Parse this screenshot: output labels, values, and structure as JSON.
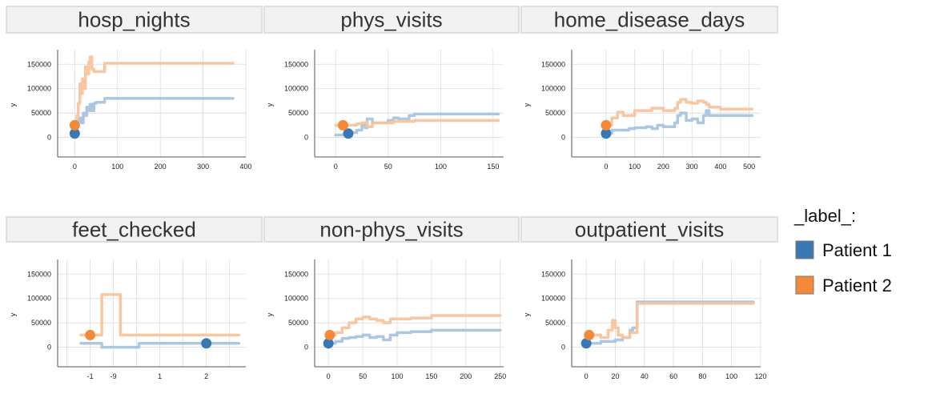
{
  "legend": {
    "title": "_label_:",
    "items": [
      {
        "label": "Patient 1",
        "color": "#3a78b4"
      },
      {
        "label": "Patient 2",
        "color": "#f28a3a"
      }
    ]
  },
  "chart_data": [
    {
      "type": "line",
      "title": "hosp_nights",
      "ylabel": "y",
      "xlim": [
        -40,
        400
      ],
      "ylim": [
        -40000,
        180000
      ],
      "xticks": [
        0,
        100,
        200,
        300,
        400
      ],
      "xtick_labels": [
        "0",
        "100",
        "200",
        "300",
        "400"
      ],
      "yticks": [
        0,
        50000,
        100000,
        150000
      ],
      "ytick_labels": [
        "0",
        "50000",
        "100000",
        "150000"
      ],
      "grid": true,
      "series": [
        {
          "name": "Patient 1",
          "step": true,
          "x": [
            0,
            5,
            8,
            12,
            15,
            20,
            25,
            28,
            32,
            36,
            40,
            45,
            50,
            70,
            370
          ],
          "y": [
            8000,
            25000,
            35000,
            40000,
            30000,
            50000,
            45000,
            62000,
            55000,
            68000,
            55000,
            70000,
            72000,
            80000,
            80000
          ],
          "marker": {
            "x": 0,
            "y": 8000
          }
        },
        {
          "name": "Patient 2",
          "step": true,
          "x": [
            0,
            5,
            8,
            12,
            15,
            18,
            22,
            25,
            30,
            33,
            36,
            40,
            45,
            50,
            70,
            370
          ],
          "y": [
            25000,
            45000,
            70000,
            110000,
            90000,
            120000,
            100000,
            145000,
            130000,
            155000,
            165000,
            140000,
            135000,
            135000,
            152000,
            152000
          ],
          "marker": {
            "x": 0,
            "y": 25000
          }
        }
      ]
    },
    {
      "type": "line",
      "title": "phys_visits",
      "ylabel": "y",
      "xlim": [
        -20,
        160
      ],
      "ylim": [
        -40000,
        180000
      ],
      "xticks": [
        0,
        50,
        100,
        150
      ],
      "xtick_labels": [
        "0",
        "50",
        "100",
        "150"
      ],
      "yticks": [
        0,
        50000,
        100000,
        150000
      ],
      "ytick_labels": [
        "0",
        "50000",
        "100000",
        "150000"
      ],
      "grid": true,
      "series": [
        {
          "name": "Patient 1",
          "step": true,
          "x": [
            0,
            10,
            20,
            25,
            28,
            30,
            35,
            50,
            55,
            60,
            70,
            75,
            155
          ],
          "y": [
            5000,
            10000,
            15000,
            25000,
            20000,
            38000,
            30000,
            35000,
            40000,
            38000,
            45000,
            48000,
            48000
          ],
          "marker": {
            "x": 12,
            "y": 8000
          }
        },
        {
          "name": "Patient 2",
          "step": true,
          "x": [
            0,
            10,
            20,
            25,
            30,
            35,
            50,
            55,
            70,
            75,
            155
          ],
          "y": [
            25000,
            25000,
            28000,
            30000,
            22000,
            30000,
            30000,
            33000,
            33000,
            35000,
            35000
          ],
          "marker": {
            "x": 7,
            "y": 25000
          }
        }
      ]
    },
    {
      "type": "line",
      "title": "home_disease_days",
      "ylabel": "y",
      "xlim": [
        -120,
        540
      ],
      "ylim": [
        -40000,
        180000
      ],
      "xticks": [
        0,
        100,
        200,
        300,
        400,
        500
      ],
      "xtick_labels": [
        "0",
        "100",
        "200",
        "300",
        "400",
        "500"
      ],
      "yticks": [
        0,
        50000,
        100000,
        150000
      ],
      "ytick_labels": [
        "0",
        "50000",
        "100000",
        "150000"
      ],
      "grid": true,
      "series": [
        {
          "name": "Patient 1",
          "step": true,
          "x": [
            0,
            20,
            60,
            80,
            100,
            140,
            160,
            180,
            200,
            240,
            250,
            260,
            280,
            300,
            320,
            340,
            350,
            360,
            510
          ],
          "y": [
            8000,
            15000,
            15000,
            18000,
            20000,
            22000,
            18000,
            25000,
            22000,
            30000,
            45000,
            50000,
            35000,
            38000,
            30000,
            45000,
            55000,
            45000,
            45000
          ],
          "marker": {
            "x": 0,
            "y": 8000
          }
        },
        {
          "name": "Patient 2",
          "step": true,
          "x": [
            0,
            20,
            40,
            60,
            100,
            140,
            160,
            200,
            240,
            250,
            260,
            280,
            300,
            320,
            340,
            350,
            360,
            400,
            510
          ],
          "y": [
            25000,
            40000,
            52000,
            45000,
            55000,
            55000,
            60000,
            55000,
            60000,
            72000,
            78000,
            72000,
            70000,
            75000,
            72000,
            68000,
            62000,
            58000,
            58000
          ],
          "marker": {
            "x": 0,
            "y": 25000
          }
        }
      ]
    },
    {
      "type": "line",
      "title": "feet_checked",
      "ylabel": "y",
      "xlim": [
        -1.7,
        2.35
      ],
      "ylim": [
        -40000,
        180000
      ],
      "xticks": [
        -1.5,
        -1,
        -0.5,
        0,
        0.5,
        1,
        1.5,
        2
      ],
      "xtick_labels": [
        "-1",
        "-9",
        "1",
        "2"
      ],
      "xtick_positions": [
        -1,
        -0.5,
        0.5,
        1.5
      ],
      "yticks": [
        0,
        50000,
        100000,
        150000
      ],
      "ytick_labels": [
        "0",
        "50000",
        "100000",
        "150000"
      ],
      "grid": true,
      "series": [
        {
          "name": "Patient 1",
          "step": true,
          "x": [
            -1.2,
            -0.75,
            0.05,
            2.2
          ],
          "y": [
            8000,
            0,
            8000,
            8000
          ],
          "marker": {
            "x": 1.5,
            "y": 8000
          }
        },
        {
          "name": "Patient 2",
          "step": true,
          "x": [
            -1.2,
            -0.75,
            -0.35,
            0.05,
            2.2
          ],
          "y": [
            25000,
            108000,
            25000,
            25000,
            25000
          ],
          "marker": {
            "x": -1,
            "y": 25000
          }
        }
      ]
    },
    {
      "type": "line",
      "title": "non-phys_visits",
      "ylabel": "y",
      "xlim": [
        -20,
        255
      ],
      "ylim": [
        -40000,
        180000
      ],
      "xticks": [
        0,
        50,
        100,
        150,
        200,
        250
      ],
      "xtick_labels": [
        "0",
        "50",
        "100",
        "150",
        "200",
        "250"
      ],
      "yticks": [
        0,
        50000,
        100000,
        150000
      ],
      "ytick_labels": [
        "0",
        "50000",
        "100000",
        "150000"
      ],
      "grid": true,
      "series": [
        {
          "name": "Patient 1",
          "step": true,
          "x": [
            0,
            10,
            20,
            30,
            40,
            50,
            60,
            70,
            80,
            90,
            100,
            120,
            150,
            250
          ],
          "y": [
            8000,
            12000,
            18000,
            20000,
            22000,
            25000,
            20000,
            22000,
            15000,
            25000,
            30000,
            32000,
            35000,
            35000
          ],
          "marker": {
            "x": 0,
            "y": 8000
          }
        },
        {
          "name": "Patient 2",
          "step": true,
          "x": [
            0,
            10,
            20,
            30,
            40,
            50,
            60,
            70,
            80,
            90,
            100,
            120,
            150,
            250
          ],
          "y": [
            25000,
            30000,
            40000,
            50000,
            58000,
            62000,
            58000,
            55000,
            50000,
            58000,
            58000,
            60000,
            65000,
            65000
          ],
          "marker": {
            "x": 2,
            "y": 25000
          }
        }
      ]
    },
    {
      "type": "line",
      "title": "outpatient_visits",
      "ylabel": "y",
      "xlim": [
        -10,
        120
      ],
      "ylim": [
        -40000,
        180000
      ],
      "xticks": [
        0,
        20,
        40,
        60,
        80,
        100,
        120
      ],
      "xtick_labels": [
        "0",
        "20",
        "40",
        "60",
        "80",
        "100",
        "120"
      ],
      "yticks": [
        0,
        50000,
        100000,
        150000
      ],
      "ytick_labels": [
        "0",
        "50000",
        "100000",
        "150000"
      ],
      "grid": true,
      "series": [
        {
          "name": "Patient 1",
          "step": true,
          "x": [
            0,
            10,
            20,
            25,
            30,
            32,
            35,
            115
          ],
          "y": [
            8000,
            12000,
            15000,
            20000,
            35000,
            40000,
            93000,
            93000
          ],
          "marker": {
            "x": 0,
            "y": 8000
          }
        },
        {
          "name": "Patient 2",
          "step": true,
          "x": [
            0,
            10,
            15,
            18,
            20,
            22,
            25,
            30,
            35,
            115
          ],
          "y": [
            25000,
            20000,
            35000,
            55000,
            40000,
            25000,
            20000,
            30000,
            90000,
            90000
          ],
          "marker": {
            "x": 2,
            "y": 25000
          }
        }
      ]
    }
  ]
}
